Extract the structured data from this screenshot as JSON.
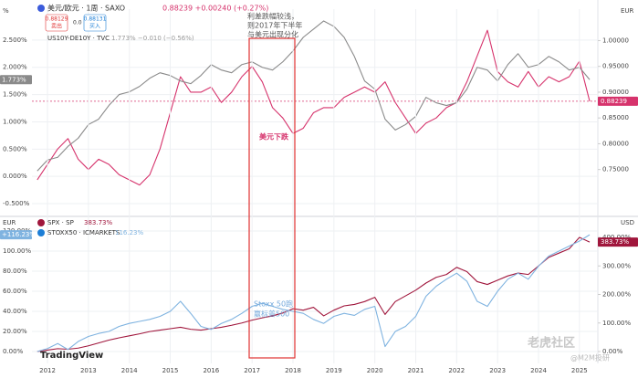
{
  "chart_data": [
    {
      "type": "line",
      "unit_left": "%",
      "unit_right": "EUR",
      "order_panel": {
        "sell_price": "0.88129",
        "sell": "卖出",
        "spread": "0.0",
        "buy_price": "0.88131",
        "buy": "买入"
      },
      "annotations": [
        "利差跌幅较浅，",
        "则2017年下半年",
        "与美元出现分化",
        "美元下跌"
      ],
      "x": [
        2011.75,
        2012,
        2012.25,
        2012.5,
        2012.75,
        2013,
        2013.25,
        2013.5,
        2013.75,
        2014,
        2014.25,
        2014.5,
        2014.75,
        2015,
        2015.25,
        2015.5,
        2015.75,
        2016,
        2016.25,
        2016.5,
        2016.75,
        2017,
        2017.25,
        2017.5,
        2017.75,
        2018,
        2018.25,
        2018.5,
        2018.75,
        2019,
        2019.25,
        2019.5,
        2019.75,
        2020,
        2020.25,
        2020.5,
        2020.75,
        2021,
        2021.25,
        2021.5,
        2021.75,
        2022,
        2022.25,
        2022.5,
        2022.75,
        2023,
        2023.25,
        2023.5,
        2023.75,
        2024,
        2024.25,
        2024.5,
        2024.75,
        2025,
        2025.25
      ],
      "xlim": [
        2011.62,
        2025.45
      ],
      "ylim": [
        -0.65,
        3.067
      ],
      "yticks": [
        {
          "value": -0.5,
          "label": "-0.500%"
        },
        {
          "value": 0,
          "label": "0.000%"
        },
        {
          "value": 0.5,
          "label": "0.500%"
        },
        {
          "value": 1,
          "label": "1.000%"
        },
        {
          "value": 1.5,
          "label": "1.500%"
        },
        {
          "value": 2,
          "label": "2.000%"
        },
        {
          "value": 2.5,
          "label": "2.500%"
        }
      ],
      "y2lim": [
        0.668,
        1.061
      ],
      "y2ticks": [
        {
          "value": 0.75,
          "label": "0.75000"
        },
        {
          "value": 0.8,
          "label": "0.80000"
        },
        {
          "value": 0.85,
          "label": "0.85000"
        },
        {
          "value": 0.9,
          "label": "0.90000"
        },
        {
          "value": 0.95,
          "label": "0.95000"
        },
        {
          "value": 1,
          "label": "1.00000"
        }
      ],
      "series": [
        {
          "name": "美元/欧元 · 1周 · SAXO",
          "quote": "0.88239 +0.00240 (+0.27%)",
          "last_label": "0.88239",
          "color": "#d6336c",
          "axis": "y2",
          "values": [
            0.73,
            0.76,
            0.79,
            0.81,
            0.77,
            0.75,
            0.77,
            0.76,
            0.74,
            0.73,
            0.72,
            0.74,
            0.79,
            0.86,
            0.93,
            0.9,
            0.9,
            0.91,
            0.88,
            0.9,
            0.93,
            0.95,
            0.92,
            0.87,
            0.85,
            0.82,
            0.83,
            0.86,
            0.87,
            0.87,
            0.89,
            0.9,
            0.91,
            0.9,
            0.92,
            0.88,
            0.85,
            0.82,
            0.84,
            0.85,
            0.87,
            0.88,
            0.92,
            0.97,
            1.02,
            0.94,
            0.92,
            0.91,
            0.94,
            0.91,
            0.93,
            0.92,
            0.93,
            0.96,
            0.88239
          ]
        },
        {
          "name": "US10Y-DE10Y · TVC",
          "quote": "1.773% −0.010 (−0.56%)",
          "last_label": "1.773%",
          "color": "#8a8a8a",
          "values": [
            0.1,
            0.3,
            0.35,
            0.55,
            0.7,
            0.95,
            1.05,
            1.3,
            1.5,
            1.55,
            1.65,
            1.8,
            1.9,
            1.85,
            1.75,
            1.7,
            1.85,
            2.05,
            1.95,
            1.9,
            2.05,
            2.1,
            2.0,
            1.95,
            2.1,
            2.3,
            2.55,
            2.7,
            2.85,
            2.75,
            2.55,
            2.2,
            1.75,
            1.6,
            1.05,
            0.85,
            0.95,
            1.1,
            1.45,
            1.35,
            1.3,
            1.35,
            1.6,
            2.0,
            1.95,
            1.75,
            2.05,
            2.25,
            2.0,
            2.05,
            2.2,
            2.1,
            1.95,
            2.0,
            1.773
          ]
        }
      ]
    },
    {
      "type": "line",
      "unit_left": "EUR",
      "unit_right": "USD",
      "annotations": [
        "Stoxx 50跑",
        "赢标普500"
      ],
      "watermarks": [
        "TradingView",
        "老虎社区",
        "@M2M投研"
      ],
      "x": [
        2011.75,
        2012,
        2012.25,
        2012.5,
        2012.75,
        2013,
        2013.25,
        2013.5,
        2013.75,
        2014,
        2014.25,
        2014.5,
        2014.75,
        2015,
        2015.25,
        2015.5,
        2015.75,
        2016,
        2016.25,
        2016.5,
        2016.75,
        2017,
        2017.25,
        2017.5,
        2017.75,
        2018,
        2018.25,
        2018.5,
        2018.75,
        2019,
        2019.25,
        2019.5,
        2019.75,
        2020,
        2020.25,
        2020.5,
        2020.75,
        2021,
        2021.25,
        2021.5,
        2021.75,
        2022,
        2022.25,
        2022.5,
        2022.75,
        2023,
        2023.25,
        2023.5,
        2023.75,
        2024,
        2024.25,
        2024.5,
        2024.75,
        2025,
        2025.25
      ],
      "xlim": [
        2011.62,
        2025.45
      ],
      "xticks": [
        2012,
        2013,
        2014,
        2015,
        2016,
        2017,
        2018,
        2019,
        2020,
        2021,
        2022,
        2023,
        2024,
        2025
      ],
      "ylim": [
        -11.8,
        130
      ],
      "yticks": [
        {
          "value": 0,
          "label": "0.00%"
        },
        {
          "value": 20,
          "label": "20.00%"
        },
        {
          "value": 40,
          "label": "40.00%"
        },
        {
          "value": 60,
          "label": "60.00%"
        },
        {
          "value": 80,
          "label": "80.00%"
        },
        {
          "value": 100,
          "label": "100.00%"
        },
        {
          "value": 120,
          "label": "120.00%"
        }
      ],
      "y2lim": [
        -41.6,
        457.6
      ],
      "y2ticks": [
        {
          "value": 0,
          "label": "0.00%"
        },
        {
          "value": 100,
          "label": "100.00%"
        },
        {
          "value": 200,
          "label": "200.00%"
        },
        {
          "value": 300,
          "label": "300.00%"
        },
        {
          "value": 400,
          "label": "400.00%"
        }
      ],
      "series": [
        {
          "name": "SPX · SP",
          "quote": "383.73%",
          "last_label": "383.73%",
          "color": "#a0163c",
          "axis": "y2",
          "values": [
            0,
            5,
            10,
            8,
            12,
            20,
            30,
            40,
            48,
            55,
            62,
            70,
            75,
            80,
            85,
            78,
            75,
            80,
            85,
            92,
            100,
            110,
            118,
            125,
            135,
            150,
            145,
            155,
            125,
            145,
            160,
            165,
            175,
            190,
            130,
            175,
            195,
            215,
            240,
            260,
            270,
            295,
            280,
            245,
            235,
            250,
            265,
            275,
            270,
            300,
            330,
            345,
            360,
            400,
            383.73
          ]
        },
        {
          "name": "STOXX50 · ICMARKETS",
          "quote": "116.23%",
          "last_label": "+116.23%",
          "color": "#7fb3e0",
          "values": [
            0,
            3,
            8,
            2,
            10,
            15,
            18,
            20,
            25,
            28,
            30,
            32,
            35,
            40,
            50,
            38,
            25,
            22,
            28,
            32,
            38,
            45,
            48,
            45,
            42,
            40,
            38,
            32,
            28,
            35,
            38,
            36,
            42,
            45,
            5,
            20,
            25,
            35,
            55,
            65,
            72,
            78,
            70,
            50,
            45,
            60,
            72,
            78,
            72,
            85,
            95,
            100,
            105,
            110,
            116.23
          ]
        }
      ]
    }
  ]
}
